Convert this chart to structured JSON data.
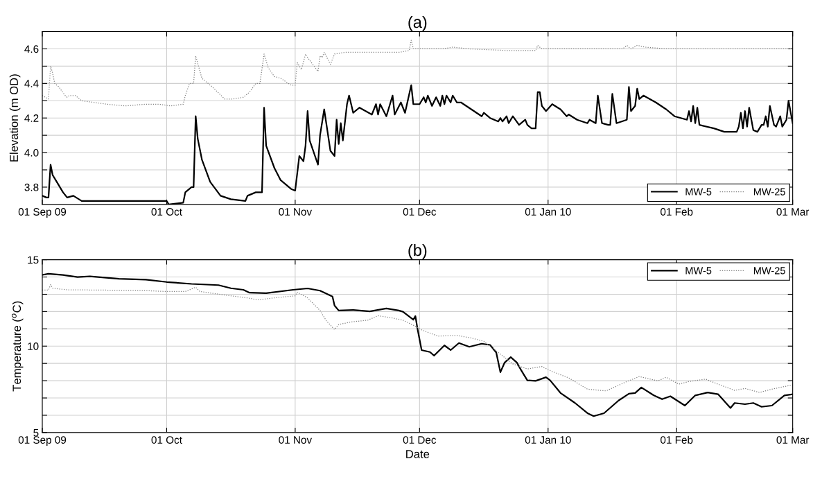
{
  "chart_data": [
    {
      "type": "line",
      "title": "(a)",
      "ylabel": "Elevation (m OD)",
      "grid": true,
      "legend": "bottom right",
      "marker": "none",
      "xlim": [
        "2009-09-01",
        "2010-03-01"
      ],
      "xticks": [
        {
          "value": "2009-09-01",
          "label": "01 Sep 09"
        },
        {
          "value": "2009-10-01",
          "label": "01 Oct"
        },
        {
          "value": "2009-11-01",
          "label": "01 Nov"
        },
        {
          "value": "2009-12-01",
          "label": "01 Dec"
        },
        {
          "value": "2010-01-01",
          "label": "01 Jan 10"
        },
        {
          "value": "2010-02-01",
          "label": "01 Feb"
        },
        {
          "value": "2010-03-01",
          "label": "01 Mar"
        }
      ],
      "ylim": [
        3.7,
        4.7
      ],
      "yticks": [
        3.8,
        {
          "value": 3.9,
          "label": null
        },
        "4.0",
        {
          "value": 4.1,
          "label": null
        },
        4.2,
        {
          "value": 4.3,
          "label": null
        },
        4.4,
        {
          "value": 4.5,
          "label": null
        },
        4.6
      ],
      "series": [
        {
          "name": "MW-5",
          "color": "#000000",
          "line_style": "solid",
          "x": [
            "2009-09-01",
            "2009-09-02",
            "2009-09-02T12:00",
            "2009-09-03",
            "2009-09-03T12:00",
            "2009-09-04T12:00",
            "2009-09-06",
            "2009-09-07",
            "2009-09-08T12:00",
            "2009-09-10T12:00",
            "2009-09-16T12:00",
            "2009-09-23",
            "2009-09-29",
            "2009-10-01",
            "2009-10-01T12:00",
            "2009-10-05",
            "2009-10-05T12:00",
            "2009-10-07",
            "2009-10-07T12:00",
            "2009-10-08",
            "2009-10-08T12:00",
            "2009-10-09T12:00",
            "2009-10-11T12:00",
            "2009-10-14",
            "2009-10-16T12:00",
            "2009-10-20",
            "2009-10-20T12:00",
            "2009-10-22T12:00",
            "2009-10-24",
            "2009-10-24T12:00",
            "2009-10-25",
            "2009-10-27",
            "2009-10-28T12:00",
            "2009-10-31",
            "2009-11-01",
            "2009-11-02",
            "2009-11-03",
            "2009-11-03T12:00",
            "2009-11-04",
            "2009-11-04T12:00",
            "2009-11-06T12:00",
            "2009-11-07",
            "2009-11-08",
            "2009-11-09T12:00",
            "2009-11-10T12:00",
            "2009-11-11",
            "2009-11-11T12:00",
            "2009-11-12",
            "2009-11-12T12:00",
            "2009-11-13T12:00",
            "2009-11-14",
            "2009-11-15",
            "2009-11-16T12:00",
            "2009-11-19T12:00",
            "2009-11-20T12:00",
            "2009-11-21",
            "2009-11-21T12:00",
            "2009-11-23",
            "2009-11-24T12:00",
            "2009-11-25",
            "2009-11-26T12:00",
            "2009-11-27T12:00",
            "2009-11-29",
            "2009-11-29T12:00",
            "2009-12-01",
            "2009-12-02",
            "2009-12-02T12:00",
            "2009-12-03",
            "2009-12-04",
            "2009-12-05",
            "2009-12-06",
            "2009-12-06T12:00",
            "2009-12-07",
            "2009-12-07T12:00",
            "2009-12-08T12:00",
            "2009-12-09",
            "2009-12-10",
            "2009-12-11",
            "2009-12-13T12:00",
            "2009-12-16",
            "2009-12-16T12:00",
            "2009-12-18",
            "2009-12-20",
            "2009-12-20T12:00",
            "2009-12-21",
            "2009-12-22",
            "2009-12-22T12:00",
            "2009-12-23T12:00",
            "2009-12-25",
            "2009-12-26T12:00",
            "2009-12-27",
            "2009-12-28",
            "2009-12-29",
            "2009-12-29T12:00",
            "2009-12-30",
            "2009-12-30T12:00",
            "2009-12-31T12:00",
            "2010-01-02",
            "2010-01-04",
            "2010-01-05T12:00",
            "2010-01-06",
            "2010-01-08",
            "2010-01-10T12:00",
            "2010-01-11",
            "2010-01-12T12:00",
            "2010-01-13",
            "2010-01-14",
            "2010-01-15T12:00",
            "2010-01-16",
            "2010-01-16T12:00",
            "2010-01-17T12:00",
            "2010-01-20",
            "2010-01-20T12:00",
            "2010-01-21",
            "2010-01-22",
            "2010-01-22T12:00",
            "2010-01-23",
            "2010-01-24",
            "2010-01-27",
            "2010-01-29T12:00",
            "2010-01-31T12:00",
            "2010-02-03T12:00",
            "2010-02-04",
            "2010-02-04T12:00",
            "2010-02-05",
            "2010-02-05T12:00",
            "2010-02-06",
            "2010-02-06T12:00",
            "2010-02-10",
            "2010-02-12T12:00",
            "2010-02-15T12:00",
            "2010-02-16",
            "2010-02-16T12:00",
            "2010-02-17",
            "2010-02-17T12:00",
            "2010-02-18",
            "2010-02-18T12:00",
            "2010-02-19T12:00",
            "2010-02-20T12:00",
            "2010-02-21T12:00",
            "2010-02-22",
            "2010-02-22T12:00",
            "2010-02-23",
            "2010-02-23T12:00",
            "2010-02-24T12:00",
            "2010-02-25",
            "2010-02-26",
            "2010-02-26T12:00",
            "2010-02-27T12:00",
            "2010-02-28",
            "2010-03-01"
          ],
          "values": [
            3.75,
            3.74,
            3.74,
            3.93,
            3.87,
            3.83,
            3.77,
            3.74,
            3.75,
            3.72,
            3.72,
            3.72,
            3.72,
            3.72,
            3.7,
            3.71,
            3.77,
            3.8,
            3.8,
            4.21,
            4.08,
            3.96,
            3.83,
            3.75,
            3.73,
            3.72,
            3.75,
            3.77,
            3.77,
            4.26,
            4.04,
            3.91,
            3.84,
            3.79,
            3.78,
            3.98,
            3.95,
            4.04,
            4.24,
            4.07,
            3.93,
            4.1,
            4.25,
            4.01,
            3.98,
            4.19,
            4.05,
            4.17,
            4.07,
            4.28,
            4.33,
            4.23,
            4.26,
            4.22,
            4.28,
            4.22,
            4.28,
            4.21,
            4.33,
            4.22,
            4.29,
            4.23,
            4.39,
            4.28,
            4.28,
            4.32,
            4.29,
            4.33,
            4.27,
            4.32,
            4.27,
            4.33,
            4.28,
            4.33,
            4.29,
            4.33,
            4.29,
            4.29,
            4.25,
            4.21,
            4.23,
            4.2,
            4.18,
            4.2,
            4.18,
            4.21,
            4.17,
            4.21,
            4.16,
            4.19,
            4.16,
            4.14,
            4.14,
            4.35,
            4.35,
            4.27,
            4.24,
            4.28,
            4.25,
            4.21,
            4.22,
            4.19,
            4.17,
            4.19,
            4.17,
            4.33,
            4.17,
            4.16,
            4.16,
            4.34,
            4.17,
            4.19,
            4.38,
            4.24,
            4.27,
            4.37,
            4.31,
            4.33,
            4.29,
            4.25,
            4.21,
            4.19,
            4.24,
            4.18,
            4.27,
            4.17,
            4.26,
            4.16,
            4.14,
            4.12,
            4.12,
            4.15,
            4.23,
            4.14,
            4.24,
            4.15,
            4.26,
            4.13,
            4.12,
            4.16,
            4.16,
            4.21,
            4.15,
            4.27,
            4.16,
            4.15,
            4.21,
            4.15,
            4.19,
            4.3,
            4.17
          ]
        },
        {
          "name": "MW-25",
          "color": "#808080",
          "line_style": "dotted",
          "x": [
            "2009-09-01",
            "2009-09-02T12:00",
            "2009-09-03",
            "2009-09-03T12:00",
            "2009-09-04",
            "2009-09-05",
            "2009-09-06T12:00",
            "2009-09-07",
            "2009-09-07T12:00",
            "2009-09-09",
            "2009-09-10T12:00",
            "2009-09-16T12:00",
            "2009-09-21",
            "2009-09-26",
            "2009-09-29",
            "2009-10-02",
            "2009-10-05",
            "2009-10-05T12:00",
            "2009-10-06T12:00",
            "2009-10-07T12:00",
            "2009-10-08",
            "2009-10-09T12:00",
            "2009-10-12",
            "2009-10-15",
            "2009-10-17",
            "2009-10-19T12:00",
            "2009-10-21",
            "2009-10-22T12:00",
            "2009-10-23T12:00",
            "2009-10-24T12:00",
            "2009-10-25T12:00",
            "2009-10-27",
            "2009-10-28T12:00",
            "2009-10-31",
            "2009-11-01",
            "2009-11-01T12:00",
            "2009-11-02T12:00",
            "2009-11-03T12:00",
            "2009-11-04",
            "2009-11-06T12:00",
            "2009-11-07",
            "2009-11-07T12:00",
            "2009-11-08",
            "2009-11-09T12:00",
            "2009-11-10T12:00",
            "2009-11-13",
            "2009-11-19T12:00",
            "2009-11-26",
            "2009-11-28T12:00",
            "2009-11-29",
            "2009-11-29T12:00",
            "2009-12-01",
            "2009-12-03",
            "2009-12-06T12:00",
            "2009-12-09",
            "2009-12-13",
            "2009-12-22T12:00",
            "2009-12-29",
            "2009-12-29T12:00",
            "2009-12-30T12:00",
            "2010-01-07T12:00",
            "2010-01-19",
            "2010-01-20",
            "2010-01-21",
            "2010-01-22T12:00",
            "2010-01-24T12:00",
            "2010-01-29T12:00",
            "2010-02-11",
            "2010-03-01"
          ],
          "values": [
            4.33,
            4.31,
            4.5,
            4.46,
            4.4,
            4.38,
            4.33,
            4.32,
            4.33,
            4.33,
            4.3,
            4.28,
            4.27,
            4.28,
            4.28,
            4.27,
            4.28,
            4.33,
            4.4,
            4.4,
            4.56,
            4.43,
            4.38,
            4.31,
            4.31,
            4.32,
            4.35,
            4.4,
            4.4,
            4.57,
            4.49,
            4.44,
            4.43,
            4.39,
            4.39,
            4.52,
            4.48,
            4.57,
            4.55,
            4.47,
            4.56,
            4.55,
            4.58,
            4.51,
            4.57,
            4.58,
            4.58,
            4.58,
            4.59,
            4.65,
            4.6,
            4.6,
            4.6,
            4.6,
            4.61,
            4.6,
            4.59,
            4.59,
            4.62,
            4.6,
            4.6,
            4.6,
            4.62,
            4.6,
            4.62,
            4.61,
            4.6,
            4.6,
            4.6
          ]
        }
      ]
    },
    {
      "type": "line",
      "title": "(b)",
      "xlabel": "Date",
      "ylabel": "Temperature ($^{o}$C)",
      "grid": true,
      "legend": "top right",
      "marker": "none",
      "xlim": [
        "2009-09-01",
        "2010-03-01"
      ],
      "xticks": [
        {
          "value": "2009-09-01",
          "label": "01 Sep 09"
        },
        {
          "value": "2009-10-01",
          "label": "01 Oct"
        },
        {
          "value": "2009-11-01",
          "label": "01 Nov"
        },
        {
          "value": "2009-12-01",
          "label": "01 Dec"
        },
        {
          "value": "2010-01-01",
          "label": "01 Jan 10"
        },
        {
          "value": "2010-02-01",
          "label": "01 Feb"
        },
        {
          "value": "2010-03-01",
          "label": "01 Mar"
        }
      ],
      "ylim": [
        5,
        15
      ],
      "yticks": [
        5,
        {
          "value": 6,
          "label": null
        },
        {
          "value": 7,
          "label": null
        },
        {
          "value": 8,
          "label": null
        },
        {
          "value": 9,
          "label": null
        },
        10,
        {
          "value": 11,
          "label": null
        },
        {
          "value": 12,
          "label": null
        },
        {
          "value": 13,
          "label": null
        },
        {
          "value": 14,
          "label": null
        },
        15
      ],
      "series": [
        {
          "name": "MW-5",
          "color": "#000000",
          "line_style": "solid",
          "x": [
            "2009-09-01",
            "2009-09-02T12:00",
            "2009-09-06",
            "2009-09-09T12:00",
            "2009-09-12T12:00",
            "2009-09-19T12:00",
            "2009-09-26",
            "2009-10-01",
            "2009-10-07",
            "2009-10-13T12:00",
            "2009-10-16T12:00",
            "2009-10-19T12:00",
            "2009-10-21",
            "2009-10-25",
            "2009-10-31T12:00",
            "2009-11-04",
            "2009-11-07",
            "2009-11-10",
            "2009-11-10T12:00",
            "2009-11-11T12:00",
            "2009-11-15",
            "2009-11-19",
            "2009-11-23",
            "2009-11-26",
            "2009-11-27",
            "2009-11-29T12:00",
            "2009-11-30",
            "2009-11-30T12:00",
            "2009-12-01T12:00",
            "2009-12-03T12:00",
            "2009-12-04T12:00",
            "2009-12-07",
            "2009-12-08T12:00",
            "2009-12-10T12:00",
            "2009-12-13",
            "2009-12-16",
            "2009-12-18",
            "2009-12-19T12:00",
            "2009-12-20T12:00",
            "2009-12-21T12:00",
            "2009-12-23",
            "2009-12-24T12:00",
            "2009-12-25T12:00",
            "2009-12-27",
            "2009-12-29",
            "2009-12-31T12:00",
            "2010-01-01T12:00",
            "2010-01-04",
            "2010-01-07T12:00",
            "2010-01-10T12:00",
            "2010-01-12",
            "2010-01-14T12:00",
            "2010-01-18",
            "2010-01-20T12:00",
            "2010-01-22",
            "2010-01-23T12:00",
            "2010-01-26T12:00",
            "2010-01-28T12:00",
            "2010-01-30T12:00",
            "2010-02-03",
            "2010-02-05T12:00",
            "2010-02-08T12:00",
            "2010-02-11",
            "2010-02-14",
            "2010-02-15",
            "2010-02-17T12:00",
            "2010-02-19T12:00",
            "2010-02-21T12:00",
            "2010-02-24",
            "2010-02-27",
            "2010-03-01"
          ],
          "values": [
            14.12,
            14.19,
            14.12,
            14.0,
            14.04,
            13.9,
            13.85,
            13.71,
            13.6,
            13.53,
            13.35,
            13.26,
            13.09,
            13.06,
            13.26,
            13.34,
            13.21,
            12.87,
            12.35,
            12.06,
            12.09,
            12.01,
            12.18,
            12.06,
            11.99,
            11.53,
            11.74,
            11.01,
            9.77,
            9.66,
            9.45,
            10.04,
            9.77,
            10.18,
            9.96,
            10.14,
            10.07,
            9.63,
            8.49,
            9.04,
            9.36,
            9.04,
            8.61,
            8.02,
            7.99,
            8.2,
            8.02,
            7.29,
            6.71,
            6.12,
            5.95,
            6.12,
            6.85,
            7.25,
            7.29,
            7.61,
            7.15,
            6.93,
            7.1,
            6.56,
            7.15,
            7.32,
            7.22,
            6.42,
            6.71,
            6.64,
            6.71,
            6.49,
            6.56,
            7.15,
            7.22
          ]
        },
        {
          "name": "MW-25",
          "color": "#808080",
          "line_style": "dotted",
          "x": [
            "2009-09-01",
            "2009-09-02T12:00",
            "2009-09-03",
            "2009-09-03T12:00",
            "2009-09-07",
            "2009-09-16T12:00",
            "2009-09-26",
            "2009-10-01",
            "2009-10-05T12:00",
            "2009-10-08",
            "2009-10-09",
            "2009-10-15T12:00",
            "2009-10-20T12:00",
            "2009-10-23",
            "2009-10-28",
            "2009-11-01",
            "2009-11-01T12:00",
            "2009-11-04",
            "2009-11-07",
            "2009-11-08T12:00",
            "2009-11-10T12:00",
            "2009-11-11T12:00",
            "2009-11-14T12:00",
            "2009-11-18T12:00",
            "2009-11-21",
            "2009-11-24",
            "2009-11-27",
            "2009-11-30",
            "2009-12-01T12:00",
            "2009-12-03",
            "2009-12-05T12:00",
            "2009-12-10",
            "2009-12-13T12:00",
            "2009-12-16T12:00",
            "2009-12-20",
            "2009-12-23T12:00",
            "2009-12-27",
            "2009-12-30T12:00",
            "2010-01-02",
            "2010-01-06",
            "2010-01-10T12:00",
            "2010-01-15",
            "2010-01-20",
            "2010-01-23",
            "2010-01-27T12:00",
            "2010-01-29T12:00",
            "2010-02-01T12:00",
            "2010-02-04",
            "2010-02-08",
            "2010-02-11",
            "2010-02-15",
            "2010-02-17T12:00",
            "2010-02-21",
            "2010-02-24",
            "2010-03-01"
          ],
          "values": [
            13.24,
            13.24,
            13.56,
            13.35,
            13.26,
            13.24,
            13.21,
            13.16,
            13.16,
            13.41,
            13.16,
            12.94,
            12.79,
            12.68,
            12.82,
            12.91,
            13.12,
            12.79,
            12.06,
            11.47,
            10.96,
            11.25,
            11.4,
            11.5,
            11.76,
            11.65,
            11.5,
            11.15,
            10.94,
            10.8,
            10.58,
            10.62,
            10.47,
            10.28,
            9.63,
            8.97,
            8.68,
            8.82,
            8.53,
            8.16,
            7.51,
            7.41,
            7.95,
            8.24,
            7.99,
            8.2,
            7.8,
            7.95,
            8.09,
            7.8,
            7.44,
            7.55,
            7.32,
            7.51,
            7.76
          ]
        }
      ]
    }
  ]
}
